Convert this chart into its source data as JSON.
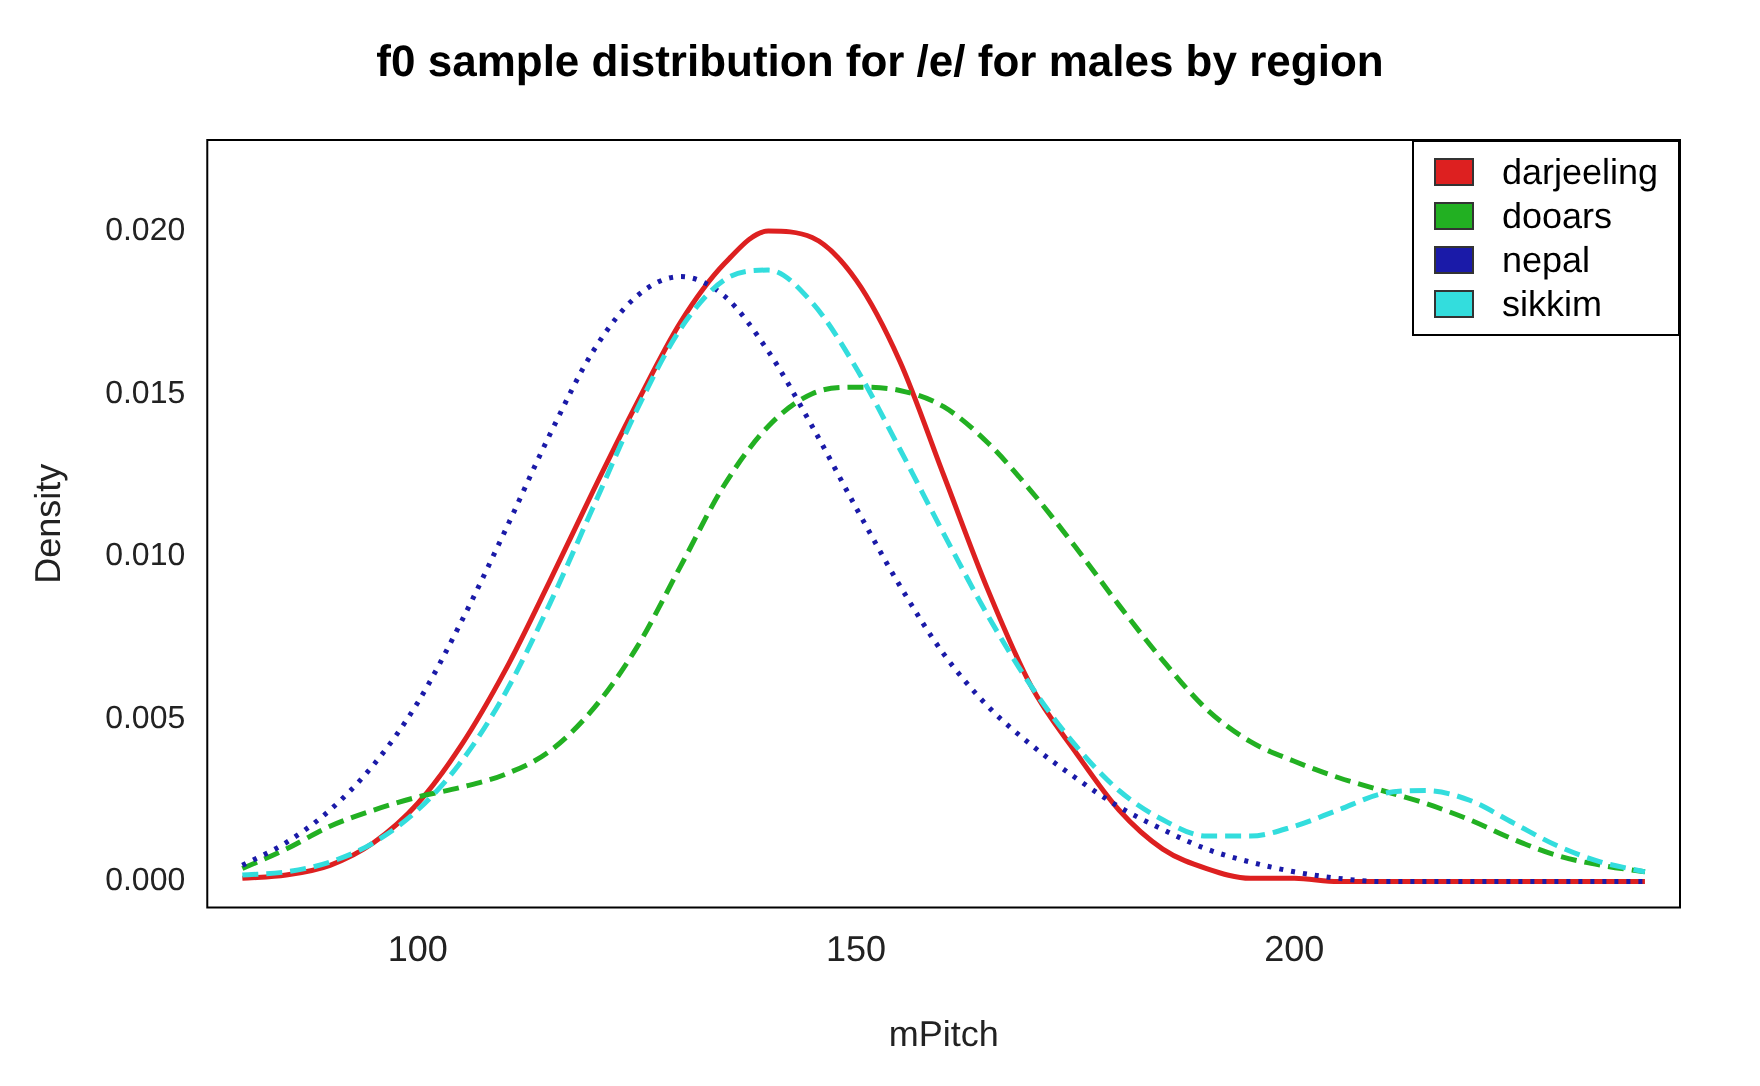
{
  "chart_data": {
    "type": "line",
    "title": "f0 sample distribution for /e/ for males by region",
    "xlabel": "mPitch",
    "ylabel": "Density",
    "x": [
      80,
      85,
      90,
      95,
      100,
      105,
      110,
      115,
      120,
      125,
      130,
      135,
      140,
      145,
      150,
      155,
      160,
      165,
      170,
      175,
      180,
      185,
      190,
      195,
      200,
      205,
      210,
      215,
      220,
      225,
      230,
      235,
      240
    ],
    "series": [
      {
        "name": "darjeeling",
        "color": "#dd2020",
        "line_style": "solid",
        "values": [
          0.0001,
          0.0002,
          0.0005,
          0.0012,
          0.0024,
          0.0042,
          0.0065,
          0.0092,
          0.012,
          0.0147,
          0.0172,
          0.019,
          0.02,
          0.0198,
          0.0185,
          0.016,
          0.0125,
          0.009,
          0.006,
          0.004,
          0.0022,
          0.001,
          0.0004,
          0.0001,
          0.0001,
          0,
          0,
          0,
          0,
          0,
          0,
          0,
          0
        ]
      },
      {
        "name": "dooars",
        "color": "#22b022",
        "line_style": "dashed",
        "values": [
          0.0004,
          0.001,
          0.0017,
          0.0022,
          0.0026,
          0.0029,
          0.0033,
          0.004,
          0.0053,
          0.0072,
          0.0097,
          0.0122,
          0.014,
          0.015,
          0.0152,
          0.0151,
          0.0146,
          0.0135,
          0.012,
          0.0103,
          0.0085,
          0.0068,
          0.0053,
          0.0043,
          0.0037,
          0.0032,
          0.0028,
          0.0024,
          0.0019,
          0.0013,
          0.0008,
          0.0005,
          0.0003
        ]
      },
      {
        "name": "nepal",
        "color": "#1a1aa8",
        "line_style": "dotted",
        "values": [
          0.0005,
          0.0012,
          0.0022,
          0.0036,
          0.0055,
          0.008,
          0.0108,
          0.0137,
          0.0163,
          0.018,
          0.0186,
          0.018,
          0.0163,
          0.014,
          0.0115,
          0.0091,
          0.007,
          0.0054,
          0.0042,
          0.0032,
          0.0023,
          0.0016,
          0.001,
          0.0006,
          0.0003,
          0.0001,
          0,
          0,
          0,
          0,
          0,
          0,
          0
        ]
      },
      {
        "name": "sikkim",
        "color": "#33dddd",
        "line_style": "dashed",
        "values": [
          0.0002,
          0.0003,
          0.0006,
          0.0012,
          0.0022,
          0.0037,
          0.0058,
          0.0085,
          0.0115,
          0.0145,
          0.017,
          0.0185,
          0.0188,
          0.0178,
          0.0158,
          0.0133,
          0.0107,
          0.0082,
          0.006,
          0.0042,
          0.0028,
          0.0019,
          0.0014,
          0.0014,
          0.0017,
          0.0022,
          0.0027,
          0.0028,
          0.0025,
          0.0018,
          0.0011,
          0.0006,
          0.0003
        ]
      }
    ],
    "xlim": [
      76,
      244
    ],
    "xticks": [
      100,
      150,
      200
    ],
    "ylim": [
      -0.0008,
      0.0228
    ],
    "yticks": [
      {
        "value": 0,
        "label": "0.000"
      },
      {
        "value": 0.005,
        "label": "0.005"
      },
      {
        "value": 0.01,
        "label": "0.010"
      },
      {
        "value": 0.015,
        "label": "0.015"
      },
      {
        "value": 0.02,
        "label": "0.020"
      }
    ],
    "grid": false,
    "legend": "top right",
    "marker": "none"
  }
}
